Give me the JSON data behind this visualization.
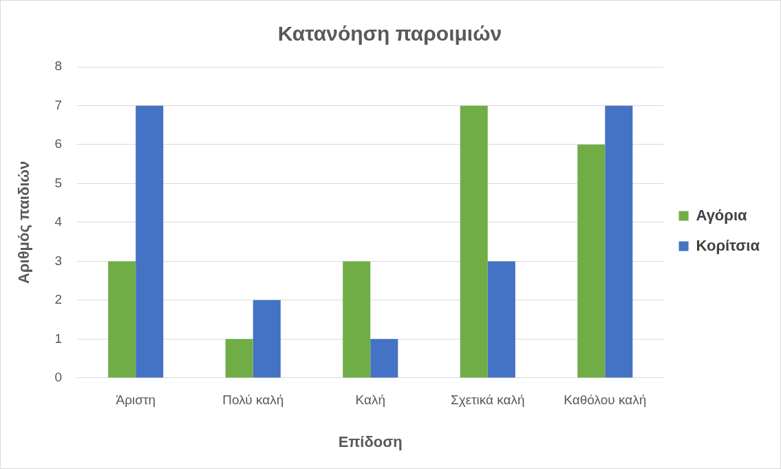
{
  "chart_data": {
    "type": "bar",
    "title": "Κατανόηση παροιμιών",
    "xlabel": "Επίδοση",
    "ylabel": "Αριθμός παιδιών",
    "categories": [
      "Άριστη",
      "Πολύ καλή",
      "Καλή",
      "Σχετικά καλή",
      "Καθόλου καλή"
    ],
    "series": [
      {
        "name": "Αγόρια",
        "color": "#70ad47",
        "values": [
          3,
          1,
          3,
          7,
          6
        ]
      },
      {
        "name": "Κορίτσια",
        "color": "#4472c4",
        "values": [
          7,
          2,
          1,
          3,
          7
        ]
      }
    ],
    "ylim": [
      0,
      8
    ],
    "yticks": [
      0,
      1,
      2,
      3,
      4,
      5,
      6,
      7,
      8
    ],
    "grid": "y",
    "legend": "right"
  }
}
